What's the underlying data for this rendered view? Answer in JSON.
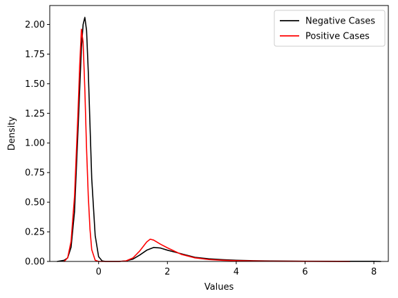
{
  "chart_data": {
    "type": "line",
    "title": "",
    "xlabel": "Values",
    "ylabel": "Density",
    "xlim": [
      -1.42,
      8.42
    ],
    "ylim": [
      0,
      2.0
    ],
    "ylim_display": [
      0,
      2.16
    ],
    "xticks": [
      0,
      2,
      4,
      6,
      8
    ],
    "yticks": [
      0.0,
      0.25,
      0.5,
      0.75,
      1.0,
      1.25,
      1.5,
      1.75,
      2.0
    ],
    "ytick_labels": [
      "0.00",
      "0.25",
      "0.50",
      "0.75",
      "1.00",
      "1.25",
      "1.50",
      "1.75",
      "2.00"
    ],
    "xtick_labels": [
      "0",
      "2",
      "4",
      "6",
      "8"
    ],
    "legend_position": "top-right",
    "grid": false,
    "series": [
      {
        "name": "Negative Cases",
        "color": "#000000",
        "x": [
          -1.2,
          -1.0,
          -0.9,
          -0.8,
          -0.7,
          -0.6,
          -0.5,
          -0.45,
          -0.4,
          -0.35,
          -0.3,
          -0.25,
          -0.2,
          -0.1,
          0.0,
          0.1,
          0.2,
          0.4,
          0.6,
          0.8,
          1.0,
          1.2,
          1.4,
          1.6,
          1.8,
          2.0,
          2.4,
          2.8,
          3.2,
          3.6,
          4.0,
          4.5,
          5.0,
          6.0,
          7.0,
          8.0,
          8.2
        ],
        "y": [
          0.0,
          0.01,
          0.03,
          0.12,
          0.42,
          1.1,
          1.8,
          2.0,
          2.06,
          1.95,
          1.6,
          1.15,
          0.7,
          0.22,
          0.04,
          0.005,
          0.0,
          0.0,
          0.0,
          0.005,
          0.02,
          0.055,
          0.095,
          0.118,
          0.113,
          0.095,
          0.065,
          0.035,
          0.022,
          0.015,
          0.01,
          0.006,
          0.004,
          0.002,
          0.001,
          0.001,
          0.0
        ]
      },
      {
        "name": "Positive Cases",
        "color": "#ff0000",
        "x": [
          -1.0,
          -0.9,
          -0.8,
          -0.7,
          -0.6,
          -0.55,
          -0.5,
          -0.45,
          -0.4,
          -0.35,
          -0.3,
          -0.25,
          -0.2,
          -0.1,
          0.0,
          0.2,
          0.4,
          0.6,
          0.8,
          1.0,
          1.2,
          1.4,
          1.5,
          1.6,
          1.8,
          2.0,
          2.4,
          2.8,
          3.2,
          3.6,
          4.0,
          5.0,
          6.0,
          7.0,
          7.3
        ],
        "y": [
          0.0,
          0.03,
          0.17,
          0.55,
          1.25,
          1.65,
          1.96,
          1.85,
          1.45,
          0.95,
          0.55,
          0.27,
          0.1,
          0.01,
          0.0,
          0.0,
          0.0,
          0.0,
          0.005,
          0.03,
          0.09,
          0.165,
          0.188,
          0.18,
          0.145,
          0.115,
          0.06,
          0.03,
          0.016,
          0.01,
          0.006,
          0.002,
          0.001,
          0.0005,
          0.0
        ]
      }
    ]
  }
}
